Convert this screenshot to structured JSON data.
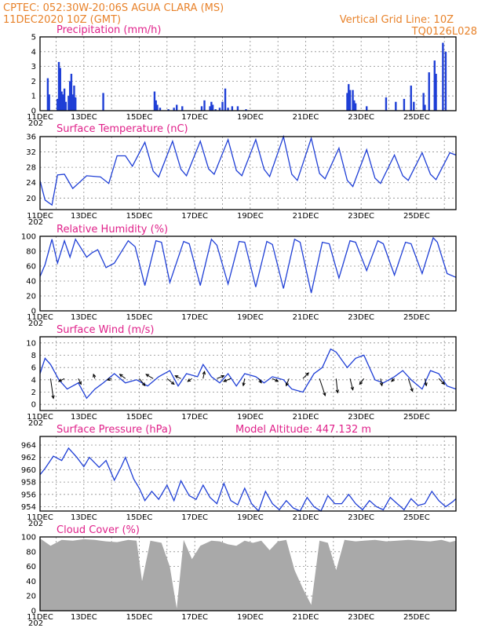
{
  "header": {
    "left_line1": "CPTEC:   052:30W-20:06S   AGUA CLARA (MS)",
    "left_line2": "11DEC2020 10Z (GMT)",
    "right_line1": "Vertical Grid Line: 10Z",
    "right_line2": "TQ0126L028"
  },
  "colors": {
    "header": "#e8822a",
    "title": "#e0218a",
    "series": "#1f3fd6",
    "cloud": "#a9a9a9"
  },
  "x_axis": {
    "date_labels": [
      "11DEC",
      "13DEC",
      "15DEC",
      "17DEC",
      "19DEC",
      "21DEC",
      "23DEC",
      "25DEC"
    ],
    "year_fragment": "202",
    "start_day": 11.42,
    "end_day": 26.42
  },
  "chart_data": [
    {
      "type": "bar",
      "title": "Precipitation (mm/h)",
      "ylim": [
        0,
        5
      ],
      "yticks": [
        "0",
        "1",
        "2",
        "3",
        "4",
        "5"
      ],
      "grid": true,
      "x_day": [
        11.7,
        11.75,
        12.05,
        12.1,
        12.15,
        12.2,
        12.25,
        12.3,
        12.35,
        12.45,
        12.5,
        12.55,
        12.6,
        12.65,
        12.7,
        13.7,
        15.55,
        15.6,
        15.65,
        15.75,
        16.05,
        16.25,
        16.35,
        16.55,
        17.25,
        17.35,
        17.55,
        17.6,
        17.65,
        17.75,
        17.9,
        18.0,
        18.1,
        18.2,
        18.35,
        18.55,
        18.85,
        22.5,
        22.55,
        22.6,
        22.7,
        22.75,
        22.8,
        23.2,
        23.9,
        24.25,
        24.55,
        24.8,
        24.9,
        25.25,
        25.3,
        25.45,
        25.65,
        25.7,
        25.95,
        26.05
      ],
      "values": [
        2.2,
        1.1,
        0.8,
        3.3,
        2.9,
        1.3,
        1.1,
        1.5,
        0.6,
        1.0,
        2.0,
        2.5,
        1.1,
        1.7,
        0.9,
        1.2,
        1.3,
        0.7,
        0.4,
        0.2,
        0.1,
        0.2,
        0.4,
        0.3,
        0.3,
        0.7,
        0.3,
        0.6,
        0.4,
        0.1,
        0.2,
        0.6,
        1.5,
        0.2,
        0.3,
        0.3,
        0.1,
        1.2,
        1.8,
        1.4,
        1.4,
        0.7,
        0.5,
        0.3,
        0.9,
        0.6,
        0.8,
        1.7,
        0.6,
        1.2,
        0.4,
        2.6,
        3.4,
        2.5,
        4.6,
        4.0
      ]
    },
    {
      "type": "line",
      "title": "Surface Temperature (nC)",
      "ylim": [
        17,
        36
      ],
      "yticks": [
        "20",
        "24",
        "28",
        "32",
        "36"
      ],
      "ytick_values": [
        20,
        24,
        28,
        32,
        36
      ],
      "grid": true,
      "x_day": [
        11.42,
        11.6,
        11.85,
        12.05,
        12.3,
        12.6,
        13.1,
        13.6,
        13.9,
        14.2,
        14.5,
        14.75,
        15.2,
        15.5,
        15.7,
        16.2,
        16.5,
        16.7,
        17.2,
        17.5,
        17.7,
        18.2,
        18.5,
        18.7,
        19.2,
        19.5,
        19.7,
        20.2,
        20.5,
        20.7,
        21.2,
        21.5,
        21.7,
        22.2,
        22.5,
        22.7,
        23.2,
        23.5,
        23.7,
        24.2,
        24.5,
        24.7,
        25.2,
        25.5,
        25.7,
        26.2,
        26.42
      ],
      "values": [
        24.5,
        19.5,
        18.2,
        26,
        26.2,
        22.5,
        25.8,
        25.5,
        23.8,
        31,
        31,
        28.3,
        34.5,
        27,
        25.5,
        34.8,
        27.5,
        25.8,
        34.8,
        27.6,
        26.2,
        35.2,
        27.2,
        25.8,
        35.2,
        27.5,
        25.6,
        36,
        26.2,
        24.6,
        35.6,
        26.4,
        25,
        33,
        24.6,
        23,
        32.6,
        25.2,
        23.8,
        31.2,
        25.8,
        24.6,
        31.8,
        26.2,
        24.8,
        31.8,
        31.2
      ]
    },
    {
      "type": "line",
      "title": "Relative Humidity (%)",
      "ylim": [
        0,
        100
      ],
      "yticks": [
        "0",
        "20",
        "40",
        "60",
        "80",
        "100"
      ],
      "ytick_values": [
        0,
        20,
        40,
        60,
        80,
        100
      ],
      "grid": true,
      "x_day": [
        11.42,
        11.6,
        11.85,
        12.05,
        12.3,
        12.5,
        12.7,
        13.1,
        13.3,
        13.5,
        13.8,
        14.1,
        14.6,
        14.85,
        15.2,
        15.6,
        15.8,
        16.1,
        16.6,
        16.8,
        17.2,
        17.6,
        17.8,
        18.2,
        18.6,
        18.8,
        19.2,
        19.6,
        19.8,
        20.2,
        20.6,
        20.8,
        21.2,
        21.6,
        21.85,
        22.2,
        22.6,
        22.8,
        23.2,
        23.6,
        23.8,
        24.2,
        24.6,
        24.8,
        25.2,
        25.6,
        25.75,
        26.1,
        26.42
      ],
      "values": [
        46,
        62,
        96,
        64,
        94,
        72,
        96,
        72,
        78,
        82,
        58,
        64,
        94,
        86,
        34,
        94,
        92,
        38,
        93,
        90,
        34,
        96,
        88,
        36,
        93,
        92,
        32,
        93,
        89,
        30,
        96,
        92,
        24,
        92,
        90,
        44,
        94,
        92,
        54,
        94,
        90,
        48,
        92,
        90,
        50,
        98,
        92,
        50,
        45
      ]
    },
    {
      "type": "line",
      "title": "Surface Wind (m/s)",
      "ylim": [
        -1,
        11
      ],
      "yticks": [
        "0",
        "2",
        "4",
        "6",
        "8",
        "10"
      ],
      "ytick_values": [
        0,
        2,
        4,
        6,
        8,
        10
      ],
      "grid": true,
      "x_day": [
        11.42,
        11.6,
        11.8,
        12.1,
        12.4,
        12.8,
        13.1,
        13.4,
        13.7,
        14.1,
        14.5,
        14.9,
        15.3,
        15.7,
        16.1,
        16.4,
        16.7,
        17.1,
        17.3,
        17.6,
        17.9,
        18.2,
        18.5,
        18.8,
        19.2,
        19.5,
        19.8,
        20.2,
        20.5,
        20.9,
        21.3,
        21.6,
        21.9,
        22.1,
        22.5,
        22.8,
        23.1,
        23.5,
        23.8,
        24.2,
        24.5,
        24.8,
        25.2,
        25.5,
        25.8,
        26.1,
        26.42
      ],
      "values": [
        5,
        7.5,
        6.5,
        4,
        2.5,
        3.5,
        1,
        2.5,
        3.5,
        5,
        3.5,
        4,
        3,
        4.5,
        5.5,
        3,
        5,
        4.5,
        6.5,
        4.5,
        3.5,
        5,
        3,
        5,
        4.5,
        3.5,
        4.5,
        4,
        2.5,
        2,
        5,
        6,
        9,
        8.5,
        6,
        7.5,
        8,
        4,
        3.5,
        4.5,
        5.5,
        4,
        2.5,
        5.5,
        5,
        3,
        2.5
      ],
      "arrows": [
        {
          "x_day": 11.8,
          "dx": 0.2,
          "dy": 1.4
        },
        {
          "x_day": 12.3,
          "dx": -0.4,
          "dy": 0.2
        },
        {
          "x_day": 12.8,
          "dx": 0.2,
          "dy": 0.4
        },
        {
          "x_day": 13.4,
          "dx": -0.1,
          "dy": -0.3
        },
        {
          "x_day": 14.0,
          "dx": -0.3,
          "dy": 0.1
        },
        {
          "x_day": 14.5,
          "dx": -0.4,
          "dy": -0.3
        },
        {
          "x_day": 15.0,
          "dx": 0.4,
          "dy": 0.5
        },
        {
          "x_day": 15.5,
          "dx": -0.5,
          "dy": -0.3
        },
        {
          "x_day": 16.0,
          "dx": 0.5,
          "dy": 0.4
        },
        {
          "x_day": 16.5,
          "dx": -0.4,
          "dy": -0.2
        },
        {
          "x_day": 16.9,
          "dx": -0.3,
          "dy": 0.2
        },
        {
          "x_day": 17.3,
          "dx": 0.1,
          "dy": -0.5
        },
        {
          "x_day": 17.8,
          "dx": 0.5,
          "dy": -0.2
        },
        {
          "x_day": 18.3,
          "dx": -0.5,
          "dy": 0.2
        },
        {
          "x_day": 18.8,
          "dx": -0.1,
          "dy": 0.5
        },
        {
          "x_day": 19.3,
          "dx": 0.2,
          "dy": 0.3
        },
        {
          "x_day": 19.8,
          "dx": 0.4,
          "dy": 0.2
        },
        {
          "x_day": 20.4,
          "dx": -0.2,
          "dy": 0.5
        },
        {
          "x_day": 20.9,
          "dx": 0.4,
          "dy": -0.4
        },
        {
          "x_day": 21.5,
          "dx": 0.4,
          "dy": 1.2
        },
        {
          "x_day": 22.1,
          "dx": 0.1,
          "dy": 1.0
        },
        {
          "x_day": 22.6,
          "dx": 0.2,
          "dy": 0.8
        },
        {
          "x_day": 23.1,
          "dx": -0.3,
          "dy": 0.4
        },
        {
          "x_day": 23.7,
          "dx": 0.1,
          "dy": 0.5
        },
        {
          "x_day": 24.2,
          "dx": -0.2,
          "dy": 0.2
        },
        {
          "x_day": 24.7,
          "dx": 0.3,
          "dy": 0.9
        },
        {
          "x_day": 25.3,
          "dx": 0.1,
          "dy": 0.5
        },
        {
          "x_day": 25.8,
          "dx": 0.4,
          "dy": 0.4
        }
      ]
    },
    {
      "type": "line",
      "title": "Surface Pressure (hPa)",
      "subtitle": "Model Altitude:  447.132  m",
      "ylim": [
        953.3,
        965.4
      ],
      "yticks": [
        "954",
        "956",
        "958",
        "960",
        "962",
        "964"
      ],
      "ytick_values": [
        954,
        956,
        958,
        960,
        962,
        964
      ],
      "grid": true,
      "x_day": [
        11.42,
        11.6,
        11.9,
        12.2,
        12.45,
        12.75,
        13.0,
        13.2,
        13.55,
        13.8,
        14.1,
        14.35,
        14.5,
        14.8,
        15.0,
        15.2,
        15.45,
        15.7,
        16.0,
        16.25,
        16.5,
        16.8,
        17.05,
        17.3,
        17.55,
        17.8,
        18.05,
        18.3,
        18.55,
        18.8,
        19.05,
        19.3,
        19.55,
        19.8,
        20.05,
        20.3,
        20.55,
        20.8,
        21.05,
        21.3,
        21.55,
        21.8,
        22.05,
        22.3,
        22.55,
        22.8,
        23.05,
        23.3,
        23.55,
        23.8,
        24.05,
        24.3,
        24.55,
        24.8,
        25.05,
        25.3,
        25.55,
        25.8,
        26.05,
        26.3,
        26.42
      ],
      "values": [
        959.2,
        960.2,
        962.2,
        961.5,
        963.5,
        962,
        960.5,
        962,
        960.4,
        961.5,
        958.3,
        960.5,
        962,
        958.5,
        957,
        955,
        956.5,
        955.2,
        957.5,
        955,
        958.2,
        955.8,
        955.2,
        957.5,
        955.5,
        954.5,
        957.8,
        955,
        954.3,
        957,
        954.5,
        953.3,
        956.5,
        954.5,
        953.5,
        955,
        953.8,
        953.3,
        955.5,
        954,
        953.3,
        955.8,
        954.5,
        954.5,
        956,
        954.5,
        953.5,
        955,
        954,
        953.5,
        955.5,
        954.5,
        953.5,
        955.3,
        954.2,
        954.5,
        956.5,
        955,
        954,
        954.8,
        955.3
      ]
    },
    {
      "type": "area",
      "title": "Cloud Cover (%)",
      "ylim": [
        0,
        100
      ],
      "yticks": [
        "0",
        "20",
        "40",
        "60",
        "80",
        "100"
      ],
      "ytick_values": [
        0,
        20,
        40,
        60,
        80,
        100
      ],
      "grid": true,
      "x_day": [
        11.42,
        11.8,
        12.2,
        12.6,
        13.0,
        13.4,
        13.8,
        14.2,
        14.6,
        14.9,
        15.1,
        15.4,
        15.8,
        16.1,
        16.35,
        16.6,
        16.9,
        17.2,
        17.6,
        17.9,
        18.2,
        18.5,
        18.8,
        19.1,
        19.4,
        19.7,
        20.0,
        20.3,
        20.6,
        20.9,
        21.2,
        21.5,
        21.8,
        22.1,
        22.4,
        22.8,
        23.1,
        23.5,
        23.9,
        24.3,
        24.7,
        25.1,
        25.5,
        25.9,
        26.2,
        26.42
      ],
      "values": [
        98,
        88,
        96,
        95,
        97,
        96,
        94,
        93,
        96,
        95,
        40,
        95,
        92,
        60,
        3,
        96,
        70,
        88,
        95,
        94,
        90,
        88,
        95,
        92,
        95,
        82,
        94,
        96,
        55,
        30,
        8,
        95,
        92,
        55,
        96,
        94,
        95,
        96,
        94,
        95,
        96,
        95,
        94,
        96,
        93,
        95
      ]
    }
  ]
}
